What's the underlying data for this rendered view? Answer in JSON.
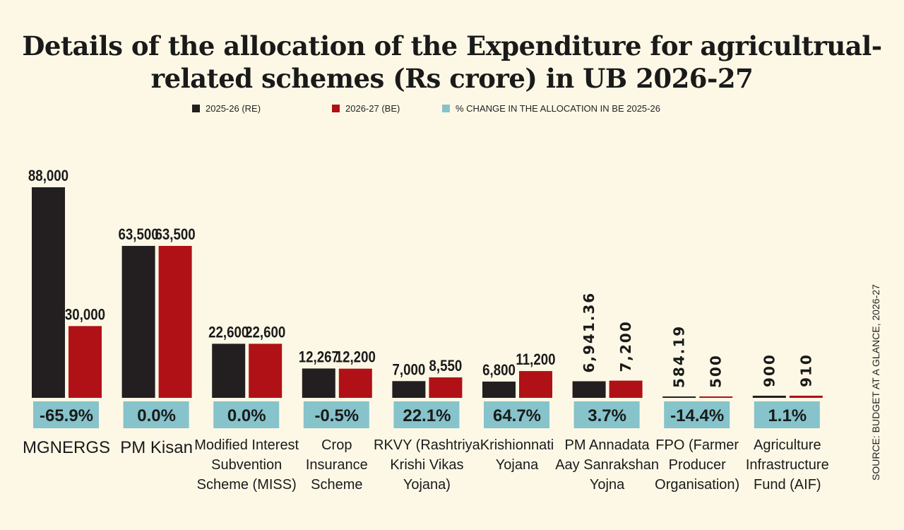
{
  "chart_data": {
    "type": "bar",
    "title": "Details of the allocation of the Expenditure for agricultrual-related schemes (Rs crore) in UB 2026-27",
    "title_lines": [
      "Details of the allocation of the Expenditure for agricultrual-",
      "related schemes (Rs crore) in UB 2026-27"
    ],
    "legend_placement": "top",
    "grid": false,
    "categories": [
      [
        "MGNERGS"
      ],
      [
        "PM Kisan"
      ],
      [
        "Modified Interest",
        "Subvention",
        "Scheme (MISS)"
      ],
      [
        "Crop",
        "Insurance",
        "Scheme"
      ],
      [
        "RKVY (Rashtriya",
        "Krishi Vikas",
        "Yojana)"
      ],
      [
        "Krishionnati",
        "Yojana"
      ],
      [
        "PM Annadata",
        "Aay Sanrakshan",
        "Yojna"
      ],
      [
        "FPO (Farmer",
        "Producer",
        "Organisation)"
      ],
      [
        "Agriculture",
        "Infrastructure",
        "Fund (AIF)"
      ]
    ],
    "series": [
      {
        "name": "2025-26 (RE)",
        "color": "#231f20",
        "values": [
          88000,
          63500,
          22600,
          12267,
          7000,
          6800,
          6941.36,
          584.19,
          900
        ],
        "labels": [
          "88,000",
          "63,500",
          "22,600",
          "12,267",
          "7,000",
          "6,800",
          "6,941.36",
          "584.19",
          "900"
        ]
      },
      {
        "name": "2026-27 (BE)",
        "color": "#b01116",
        "values": [
          30000,
          63500,
          22600,
          12200,
          8550,
          11200,
          7200,
          500,
          910
        ],
        "labels": [
          "30,000",
          "63,500",
          "22,600",
          "12,200",
          "8,550",
          "11,200",
          "7,200",
          "500",
          "910"
        ]
      },
      {
        "name": "% CHANGE IN THE ALLOCATION IN BE 2025-26",
        "color": "#86c3cb",
        "values": [
          -65.9,
          0.0,
          0.0,
          -0.5,
          22.1,
          64.7,
          3.7,
          -14.4,
          1.1
        ],
        "labels": [
          "-65.9%",
          "0.0%",
          "0.0%",
          "-0.5%",
          "22.1%",
          "64.7%",
          "3.7%",
          "-14.4%",
          "1.1%"
        ]
      }
    ],
    "vertical_value_labels": [
      6,
      7,
      8
    ],
    "source": "SOURCE: BUDGET AT A GLANCE, 2026-27"
  }
}
